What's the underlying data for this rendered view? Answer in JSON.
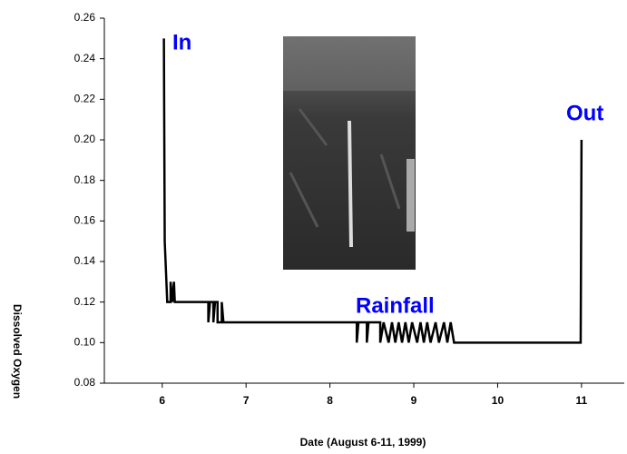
{
  "chart_data": {
    "type": "line",
    "y_label": "Dissolved Oxygen",
    "x_label": "Date (August 6-11, 1999)",
    "annotations": [
      "In",
      "Rainfall",
      "Out"
    ],
    "annotation_color": "#0000ff",
    "xlim": [
      5.31,
      11.51
    ],
    "xticks": [
      6,
      7,
      8,
      9,
      10,
      11
    ],
    "ylim": [
      0.08,
      0.26
    ],
    "yticks": [
      0.08,
      {
        "value": 0.1,
        "label": "0.10"
      },
      0.12,
      0.14,
      0.16,
      0.18,
      {
        "value": 0.2,
        "label": "0.20"
      },
      0.22,
      0.24,
      0.26
    ],
    "grid": false,
    "series": [
      {
        "color": "#000000",
        "x": [
          6.02,
          6.03,
          6.06,
          6.1,
          6.1,
          6.12,
          6.14,
          6.15,
          6.55,
          6.55,
          6.57,
          6.61,
          6.61,
          6.63,
          6.66,
          6.66,
          6.71,
          6.71,
          6.73,
          8.32,
          8.32,
          8.34,
          8.44,
          8.44,
          8.46,
          8.6,
          8.6,
          8.64,
          8.7,
          8.74,
          8.78,
          8.82,
          8.86,
          8.9,
          8.94,
          8.98,
          9.04,
          9.08,
          9.12,
          9.16,
          9.2,
          9.26,
          9.3,
          9.36,
          9.4,
          9.44,
          9.48,
          9.52,
          10.99,
          11.0
        ],
        "values": [
          0.25,
          0.15,
          0.12,
          0.12,
          0.13,
          0.12,
          0.13,
          0.12,
          0.12,
          0.11,
          0.12,
          0.12,
          0.11,
          0.12,
          0.12,
          0.11,
          0.11,
          0.12,
          0.11,
          0.11,
          0.1,
          0.11,
          0.11,
          0.1,
          0.11,
          0.11,
          0.1,
          0.11,
          0.1,
          0.11,
          0.1,
          0.11,
          0.1,
          0.11,
          0.1,
          0.11,
          0.1,
          0.11,
          0.1,
          0.11,
          0.1,
          0.11,
          0.1,
          0.11,
          0.1,
          0.11,
          0.1,
          0.1,
          0.1,
          0.2
        ]
      }
    ]
  }
}
